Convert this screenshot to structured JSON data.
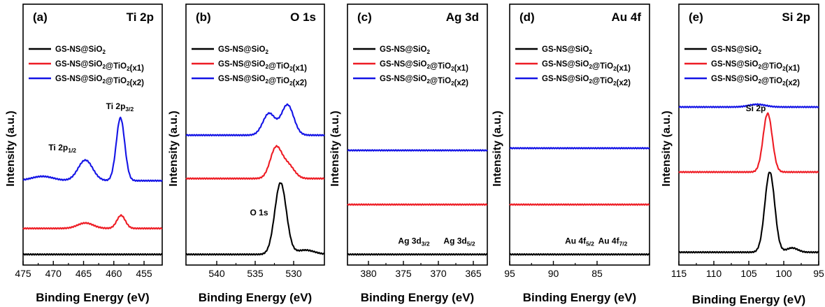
{
  "colors": {
    "black": "#000000",
    "red": "#ee1c24",
    "blue": "#1414e6"
  },
  "chart_data": [
    {
      "type": "line",
      "panel_label": "(a)",
      "title": "Ti 2p",
      "xlabel": "Binding Energy (eV)",
      "ylabel": "Intensity (a.u.)",
      "xlim": [
        475,
        452
      ],
      "ylim": [
        0,
        100
      ],
      "xticks": [
        "475",
        "470",
        "465",
        "460",
        "455"
      ],
      "legend_position": "top-left",
      "annotations": [
        {
          "text": "Ti 2p",
          "sub": "3/2",
          "x": 459,
          "y": 69
        },
        {
          "text": "Ti 2p",
          "sub": "1/2",
          "x": 468.5,
          "y": 50
        }
      ],
      "series": [
        {
          "name": "GS-NS@SiO2",
          "color": "#000000",
          "baseline": 2,
          "peaks": []
        },
        {
          "name": "GS-NS@SiO2@TiO2(x1)",
          "color": "#ee1c24",
          "baseline": 14,
          "peaks": [
            {
              "center": 458.8,
              "height": 6,
              "width": 0.7
            },
            {
              "center": 464.7,
              "height": 2.5,
              "width": 1.3
            }
          ]
        },
        {
          "name": "GS-NS@SiO2@TiO2(x2)",
          "color": "#1414e6",
          "baseline": 36,
          "peaks": [
            {
              "center": 458.9,
              "height": 29,
              "width": 0.7
            },
            {
              "center": 464.7,
              "height": 9.5,
              "width": 1.2
            },
            {
              "center": 471.8,
              "height": 2,
              "width": 1.8
            }
          ]
        }
      ]
    },
    {
      "type": "line",
      "panel_label": "(b)",
      "title": "O 1s",
      "xlabel": "Binding Energy (eV)",
      "ylabel": "Intensity (a.u.)",
      "xlim": [
        544,
        526
      ],
      "ylim": [
        0,
        100
      ],
      "xticks": [
        "540",
        "535",
        "530"
      ],
      "legend_position": "top-left",
      "annotations": [
        {
          "text": "O 1s",
          "sub": "",
          "x": 534.5,
          "y": 20
        }
      ],
      "series": [
        {
          "name": "GS-NS@SiO2",
          "color": "#000000",
          "baseline": 2,
          "peaks": [
            {
              "center": 531.7,
              "height": 33,
              "width": 0.75
            },
            {
              "center": 528.5,
              "height": 2,
              "width": 1.2
            }
          ]
        },
        {
          "name": "GS-NS@SiO2@TiO2(x1)",
          "color": "#ee1c24",
          "baseline": 37,
          "peaks": [
            {
              "center": 532.3,
              "height": 14,
              "width": 0.75
            },
            {
              "center": 530.7,
              "height": 6,
              "width": 0.8
            }
          ]
        },
        {
          "name": "GS-NS@SiO2@TiO2(x2)",
          "color": "#1414e6",
          "baseline": 57,
          "peaks": [
            {
              "center": 533.2,
              "height": 10,
              "width": 0.8
            },
            {
              "center": 530.8,
              "height": 14,
              "width": 0.8
            }
          ]
        }
      ]
    },
    {
      "type": "line",
      "panel_label": "(c)",
      "title": "Ag 3d",
      "xlabel": "Binding Energy (eV)",
      "ylabel": "Intensity (a.u.)",
      "xlim": [
        383,
        363
      ],
      "ylim": [
        0,
        100
      ],
      "xticks": [
        "380",
        "375",
        "370",
        "365"
      ],
      "legend_position": "top-left",
      "annotations": [
        {
          "text": "Ag 3d",
          "sub": "3/2",
          "x": 373.5,
          "y": 7
        },
        {
          "text": "Ag 3d",
          "sub": "5/2",
          "x": 367,
          "y": 7
        }
      ],
      "series": [
        {
          "name": "GS-NS@SiO2",
          "color": "#000000",
          "baseline": 2,
          "peaks": []
        },
        {
          "name": "GS-NS@SiO2@TiO2(x1)",
          "color": "#ee1c24",
          "baseline": 25,
          "peaks": []
        },
        {
          "name": "GS-NS@SiO2@TiO2(x2)",
          "color": "#1414e6",
          "baseline": 50,
          "peaks": []
        }
      ]
    },
    {
      "type": "line",
      "panel_label": "(d)",
      "title": "Au 4f",
      "xlabel": "Binding Energy (eV)",
      "ylabel": "Intensity (a.u.)",
      "xlim": [
        95,
        79
      ],
      "ylim": [
        0,
        100
      ],
      "xticks": [
        "95",
        "90",
        "85"
      ],
      "legend_position": "top-left",
      "annotations": [
        {
          "text": "Au 4f",
          "sub": "5/2",
          "x": 87,
          "y": 7
        },
        {
          "text": "Au 4f",
          "sub": "7/2",
          "x": 83.2,
          "y": 7
        }
      ],
      "series": [
        {
          "name": "GS-NS@SiO2",
          "color": "#000000",
          "baseline": 2,
          "peaks": []
        },
        {
          "name": "GS-NS@SiO2@TiO2(x1)",
          "color": "#ee1c24",
          "baseline": 25,
          "peaks": []
        },
        {
          "name": "GS-NS@SiO2@TiO2(x2)",
          "color": "#1414e6",
          "baseline": 51,
          "peaks": []
        }
      ]
    },
    {
      "type": "line",
      "panel_label": "(e)",
      "title": "Si 2p",
      "xlabel": "Binding Energy (eV)",
      "ylabel": "Intensity (a.u.)",
      "xlim": [
        115,
        95
      ],
      "ylim": [
        0,
        100
      ],
      "xticks": [
        "115",
        "110",
        "105",
        "100",
        "95"
      ],
      "legend_position": "top-left",
      "annotations": [
        {
          "text": "Si 2p",
          "sub": "",
          "x": 104,
          "y": 68
        }
      ],
      "series": [
        {
          "name": "GS-NS@SiO2",
          "color": "#000000",
          "baseline": 3,
          "peaks": [
            {
              "center": 102,
              "height": 37,
              "width": 0.7
            },
            {
              "center": 98.8,
              "height": 2,
              "width": 0.8
            }
          ]
        },
        {
          "name": "GS-NS@SiO2@TiO2(x1)",
          "color": "#ee1c24",
          "baseline": 40,
          "peaks": [
            {
              "center": 102.3,
              "height": 27,
              "width": 0.65
            }
          ]
        },
        {
          "name": "GS-NS@SiO2@TiO2(x2)",
          "color": "#1414e6",
          "baseline": 70,
          "peaks": [
            {
              "center": 103.8,
              "height": 1.2,
              "width": 1.2
            }
          ]
        }
      ]
    }
  ]
}
